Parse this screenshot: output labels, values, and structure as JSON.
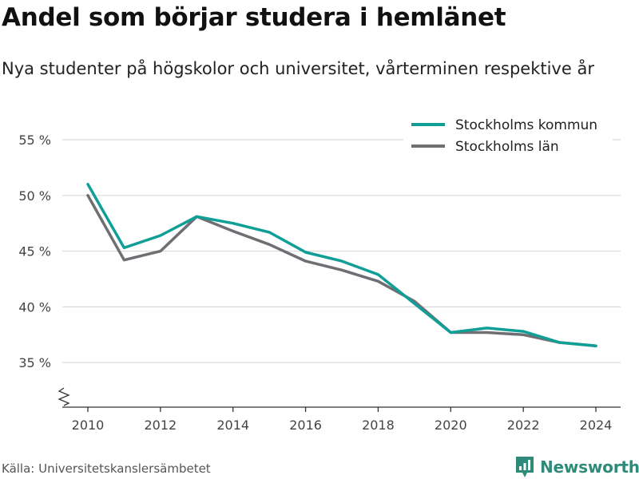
{
  "chart_data": {
    "type": "line",
    "title": "Andel som börjar studera i hemlänet",
    "subtitle": "Nya studenter på högskolor och universitet, vårterminen respektive år",
    "x": [
      2010,
      2011,
      2012,
      2013,
      2014,
      2015,
      2016,
      2017,
      2018,
      2019,
      2020,
      2021,
      2022,
      2023,
      2024
    ],
    "series": [
      {
        "name": "Stockholms kommun",
        "color": "#0f9f96",
        "values": [
          51.0,
          45.3,
          46.4,
          48.1,
          47.5,
          46.7,
          44.9,
          44.1,
          42.9,
          40.3,
          37.7,
          38.1,
          37.8,
          36.8,
          36.5
        ]
      },
      {
        "name": "Stockholms län",
        "color": "#6f6e73",
        "values": [
          50.0,
          44.2,
          45.0,
          48.1,
          46.8,
          45.6,
          44.1,
          43.3,
          42.3,
          40.5,
          37.7,
          37.7,
          37.5,
          36.8,
          36.5
        ]
      }
    ],
    "xticks": [
      2010,
      2012,
      2014,
      2016,
      2018,
      2020,
      2022,
      2024
    ],
    "yticks": [
      35,
      40,
      45,
      50,
      55
    ],
    "ytick_labels": [
      "35 %",
      "40 %",
      "45 %",
      "50 %",
      "55 %"
    ],
    "ylim": [
      31.0,
      55.0
    ],
    "xlim": [
      2010,
      2024
    ],
    "y_axis_break": true,
    "grid": true,
    "legend_position": "top-right"
  },
  "footer": {
    "source": "Källa: Universitetskanslersämbetet",
    "brand": "Newsworthy",
    "brand_color": "#2e8b7a"
  }
}
